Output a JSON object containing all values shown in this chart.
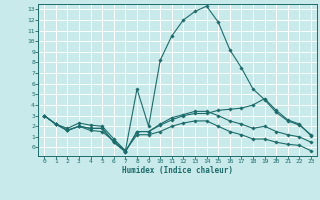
{
  "title": "",
  "xlabel": "Humidex (Indice chaleur)",
  "xlim": [
    -0.5,
    23.5
  ],
  "ylim": [
    -0.8,
    13.5
  ],
  "yticks": [
    0,
    1,
    2,
    3,
    4,
    5,
    6,
    7,
    8,
    9,
    10,
    11,
    12,
    13
  ],
  "xticks": [
    0,
    1,
    2,
    3,
    4,
    5,
    6,
    7,
    8,
    9,
    10,
    11,
    12,
    13,
    14,
    15,
    16,
    17,
    18,
    19,
    20,
    21,
    22,
    23
  ],
  "bg_color": "#c8eaea",
  "grid_color": "#ffffff",
  "line_color": "#1e6b6b",
  "lines": [
    {
      "x": [
        0,
        1,
        2,
        3,
        4,
        5,
        6,
        7,
        8,
        9,
        10,
        11,
        12,
        13,
        14,
        15,
        16,
        17,
        18,
        19,
        20,
        21,
        22,
        23
      ],
      "y": [
        3.0,
        2.2,
        1.8,
        2.3,
        2.1,
        2.0,
        0.8,
        -0.3,
        5.5,
        2.0,
        8.2,
        10.5,
        12.0,
        12.8,
        13.3,
        11.8,
        9.2,
        7.5,
        5.5,
        4.5,
        3.3,
        2.5,
        2.1,
        1.2
      ]
    },
    {
      "x": [
        0,
        1,
        2,
        3,
        4,
        5,
        6,
        7,
        8,
        9,
        10,
        11,
        12,
        13,
        14,
        15,
        16,
        17,
        18,
        19,
        20,
        21,
        22,
        23
      ],
      "y": [
        3.0,
        2.2,
        1.6,
        2.0,
        1.8,
        1.8,
        0.5,
        -0.4,
        1.5,
        1.5,
        2.1,
        2.6,
        3.0,
        3.2,
        3.2,
        3.5,
        3.6,
        3.7,
        4.0,
        4.6,
        3.5,
        2.6,
        2.2,
        1.1
      ]
    },
    {
      "x": [
        0,
        1,
        2,
        3,
        4,
        5,
        6,
        7,
        8,
        9,
        10,
        11,
        12,
        13,
        14,
        15,
        16,
        17,
        18,
        19,
        20,
        21,
        22,
        23
      ],
      "y": [
        3.0,
        2.2,
        1.6,
        2.0,
        1.6,
        1.5,
        0.6,
        -0.3,
        1.2,
        1.2,
        1.5,
        2.0,
        2.3,
        2.5,
        2.5,
        2.0,
        1.5,
        1.2,
        0.8,
        0.8,
        0.5,
        0.3,
        0.2,
        -0.3
      ]
    },
    {
      "x": [
        0,
        1,
        2,
        3,
        4,
        5,
        6,
        7,
        8,
        9,
        10,
        11,
        12,
        13,
        14,
        15,
        16,
        17,
        18,
        19,
        20,
        21,
        22,
        23
      ],
      "y": [
        3.0,
        2.2,
        1.6,
        2.0,
        1.8,
        1.8,
        0.5,
        -0.4,
        1.5,
        1.5,
        2.2,
        2.8,
        3.1,
        3.4,
        3.4,
        3.0,
        2.5,
        2.2,
        1.8,
        2.0,
        1.5,
        1.2,
        1.0,
        0.5
      ]
    }
  ]
}
